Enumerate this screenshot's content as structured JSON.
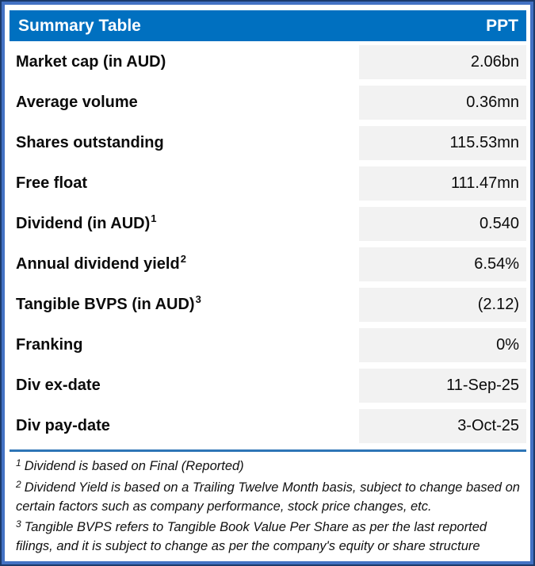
{
  "colors": {
    "header_bg": "#0070C0",
    "border_outer": "#1C3A6B",
    "border_inner": "#4472C4",
    "cell_bg": "#F2F2F2",
    "separator": "#2E75B6",
    "text": "#0B0B0B"
  },
  "chart_data": {
    "type": "table",
    "title": "Summary Table",
    "ticker": "PPT",
    "columns": [
      "Summary Table",
      "PPT"
    ],
    "rows": [
      {
        "label": "Market cap (in AUD)",
        "sup": "",
        "value": "2.06bn"
      },
      {
        "label": "Average volume",
        "sup": "",
        "value": "0.36mn"
      },
      {
        "label": "Shares outstanding",
        "sup": "",
        "value": "115.53mn"
      },
      {
        "label": "Free float",
        "sup": "",
        "value": "111.47mn"
      },
      {
        "label": "Dividend (in AUD)",
        "sup": "1",
        "value": "0.540"
      },
      {
        "label": "Annual dividend yield",
        "sup": "2",
        "value": "6.54%"
      },
      {
        "label": "Tangible BVPS (in AUD)",
        "sup": "3",
        "value": "(2.12)"
      },
      {
        "label": "Franking",
        "sup": "",
        "value": "0%"
      },
      {
        "label": "Div ex-date",
        "sup": "",
        "value": "11-Sep-25"
      },
      {
        "label": "Div pay-date",
        "sup": "",
        "value": "3-Oct-25"
      }
    ],
    "footnotes": [
      {
        "sup": "1",
        "text": "Dividend is based on Final (Reported)"
      },
      {
        "sup": "2",
        "text": "Dividend Yield is based on a Trailing Twelve Month basis, subject to change based on certain factors such as company performance, stock price changes, etc."
      },
      {
        "sup": "3",
        "text": "Tangible BVPS refers to Tangible Book Value Per Share as per the last reported filings, and it is subject to change as per the company's equity or share structure"
      }
    ]
  }
}
